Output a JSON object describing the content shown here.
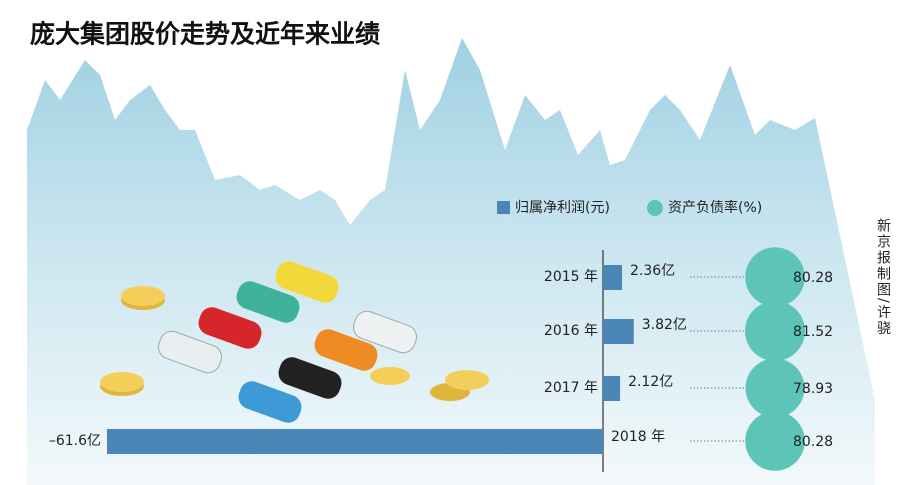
{
  "chart_data": {
    "type": "bar",
    "title": "庞大集团股价走势及近年来业绩",
    "credit": "新京报制图/许骁",
    "categories": [
      "2015 年",
      "2016 年",
      "2017 年",
      "2018 年"
    ],
    "series": [
      {
        "name": "归属净利润(元)",
        "color": "#4a86b6",
        "values": [
          2.36,
          3.82,
          2.12,
          -61.6
        ],
        "value_labels": [
          "2.36亿",
          "3.82亿",
          "2.12亿",
          "–61.6亿"
        ]
      },
      {
        "name": "资产负债率(%)",
        "color": "#5cc5b8",
        "values": [
          80.28,
          81.52,
          78.93,
          80.28
        ]
      }
    ]
  }
}
